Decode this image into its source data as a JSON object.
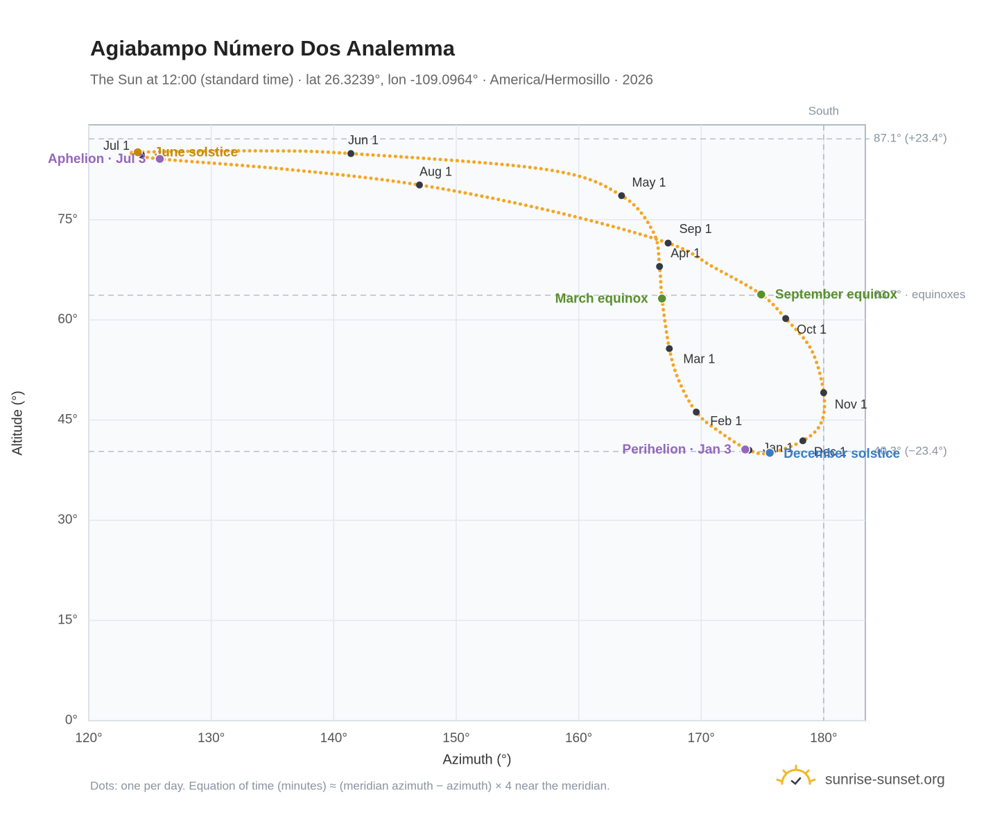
{
  "chart_data": {
    "type": "line",
    "title": "Agiabampo Número Dos Analemma",
    "subtitle": "The Sun at 12:00 (standard time) · lat 26.3239°, lon -109.0964° · America/Hermosillo · 2026",
    "xlabel": "Azimuth (°)",
    "ylabel": "Altitude (°)",
    "xlim": [
      120,
      183.4
    ],
    "ylim": [
      0,
      89.2
    ],
    "xticks": [
      {
        "value": 120,
        "label": "120°"
      },
      {
        "value": 130,
        "label": "130°"
      },
      {
        "value": 140,
        "label": "140°"
      },
      {
        "value": 150,
        "label": "150°"
      },
      {
        "value": 160,
        "label": "160°"
      },
      {
        "value": 170,
        "label": "170°"
      },
      {
        "value": 180,
        "label": "180°"
      }
    ],
    "yticks": [
      {
        "value": 0,
        "label": "0°"
      },
      {
        "value": 15,
        "label": "15°"
      },
      {
        "value": 30,
        "label": "30°"
      },
      {
        "value": 45,
        "label": "45°"
      },
      {
        "value": 60,
        "label": "60°"
      },
      {
        "value": 75,
        "label": "75°"
      }
    ],
    "grid": true,
    "series": [
      {
        "color": "#f5a623",
        "x": [
          173.9,
          171.3,
          169.6,
          168.2,
          167.4,
          166.8,
          166.6,
          166.1,
          163.5,
          157.4,
          141.4,
          134.2,
          124.0,
          124.3,
          125.8,
          136.4,
          147.0,
          158.0,
          167.3,
          171.0,
          174.9,
          176.9,
          179.0,
          180.0,
          179.8,
          178.3,
          175.6
        ],
        "values": [
          40.5,
          43.5,
          46.2,
          50.8,
          55.7,
          63.2,
          68.0,
          73.1,
          78.6,
          82.5,
          84.9,
          85.3,
          85.1,
          84.7,
          84.1,
          82.5,
          80.2,
          76.2,
          71.5,
          67.9,
          63.8,
          60.2,
          55.5,
          49.1,
          44.6,
          41.9,
          40.1
        ]
      }
    ],
    "month_markers": {
      "color": "#333a44",
      "labels": [
        "Jan 1",
        "Feb 1",
        "Mar 1",
        "Apr 1",
        "May 1",
        "Jun 1",
        "Jul 1",
        "Aug 1",
        "Sep 1",
        "Oct 1",
        "Nov 1",
        "Dec 1"
      ],
      "x": [
        173.9,
        169.6,
        167.4,
        166.6,
        163.5,
        141.4,
        124.3,
        147.0,
        167.3,
        176.9,
        180.0,
        178.3
      ],
      "values": [
        40.5,
        46.2,
        55.7,
        68.0,
        78.6,
        84.9,
        84.7,
        80.2,
        71.5,
        60.2,
        49.1,
        41.9
      ]
    },
    "events": [
      {
        "label": "June solstice",
        "color": "#c58a0a",
        "x": 124.0,
        "value": 85.1
      },
      {
        "label": "Aphelion · Jul 3",
        "color": "#9467bd",
        "x": 125.8,
        "value": 84.1
      },
      {
        "label": "March equinox",
        "color": "#5a8f2e",
        "x": 166.8,
        "value": 63.2
      },
      {
        "label": "September equinox",
        "color": "#5a8f2e",
        "x": 174.9,
        "value": 63.8
      },
      {
        "label": "Perihelion · Jan 3",
        "color": "#9467bd",
        "x": 173.6,
        "value": 40.6
      },
      {
        "label": "December solstice",
        "color": "#3b7dc4",
        "x": 175.6,
        "value": 40.1
      }
    ],
    "reference_lines": [
      {
        "value": 87.1,
        "label": "87.1° (+23.4°)"
      },
      {
        "value": 63.7,
        "label": "63.7° · equinoxes"
      },
      {
        "value": 40.3,
        "label": "40.3° (−23.4°)"
      }
    ],
    "meridian": {
      "value": 180,
      "label": "South"
    },
    "footnote": "Dots: one per day. Equation of time (minutes) ≈ (meridian azimuth − azimuth) × 4 near the meridian.",
    "brand": "sunrise-sunset.org"
  }
}
